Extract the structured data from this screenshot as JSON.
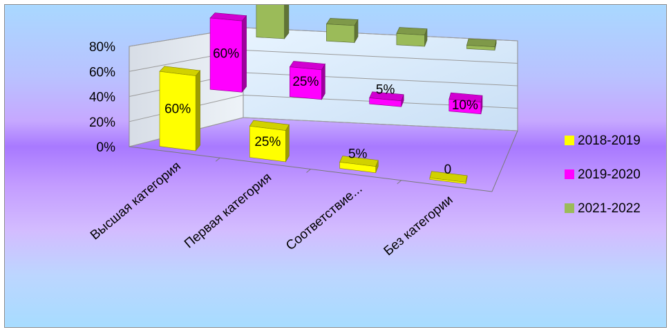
{
  "chart_data": {
    "type": "bar",
    "categories": [
      "Высшая категория",
      "Первая категория",
      "Соответствие...",
      "Без категории"
    ],
    "series": [
      {
        "name": "2018-2019",
        "values": [
          60,
          25,
          5,
          0
        ],
        "labels": [
          "60%",
          "25%",
          "5%",
          "0"
        ],
        "color": "#ffff00"
      },
      {
        "name": "2019-2020",
        "values": [
          60,
          25,
          5,
          10
        ],
        "labels": [
          "60%",
          "25%",
          "5%",
          "10%"
        ],
        "color": "#ff00ff"
      },
      {
        "name": "2021-2022",
        "values": [
          80,
          15,
          10,
          3
        ],
        "labels": [],
        "color": "#9bbb59"
      }
    ],
    "y_ticks": [
      "0%",
      "20%",
      "40%",
      "60%",
      "80%"
    ],
    "ylim": [
      0,
      80
    ],
    "legend_position": "right",
    "grid": true,
    "title": "",
    "xlabel": "",
    "ylabel": ""
  }
}
